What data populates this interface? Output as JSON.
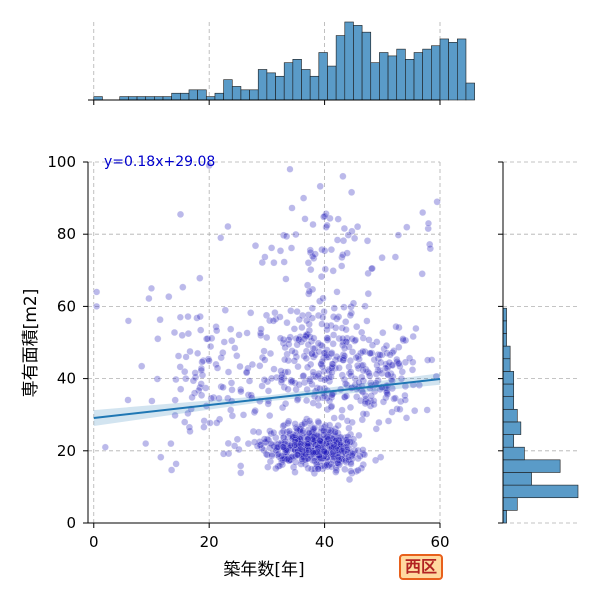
{
  "chart_data": {
    "type": "scatter",
    "xlabel": "築年数[年]",
    "ylabel": "専有面積[m2]",
    "xlim": [
      -1,
      60
    ],
    "ylim": [
      0,
      100
    ],
    "xticks": [
      0,
      20,
      40,
      60
    ],
    "yticks": [
      0,
      20,
      40,
      60,
      80,
      100
    ],
    "grid": true,
    "annotation": "y=0.18x+29.08",
    "regression": {
      "slope": 0.18,
      "intercept": 29.08
    },
    "badge": "西区",
    "point_color": "#1f16b8",
    "line_color": "#1f77b4",
    "hist_color": "#5a9bc8",
    "x_hist": {
      "bin_start": 0,
      "bin_width": 1.5,
      "counts": [
        1,
        0,
        0,
        1,
        1,
        1,
        1,
        1,
        1,
        2,
        2,
        3,
        3,
        1,
        2,
        6,
        4,
        3,
        3,
        9,
        8,
        7,
        11,
        12,
        9,
        7,
        14,
        10,
        19,
        23,
        22,
        20,
        11,
        14,
        13,
        15,
        12,
        14,
        15,
        16,
        18,
        17,
        18,
        5
      ]
    },
    "y_hist": {
      "bin_start": 0,
      "bin_width": 3.5,
      "counts": [
        1,
        4,
        21,
        8,
        16,
        6,
        3,
        5,
        4,
        3,
        3,
        3,
        2,
        2,
        1,
        1,
        1,
        0,
        0,
        0,
        0,
        0,
        0,
        0,
        0,
        0,
        0,
        0,
        0
      ]
    }
  }
}
